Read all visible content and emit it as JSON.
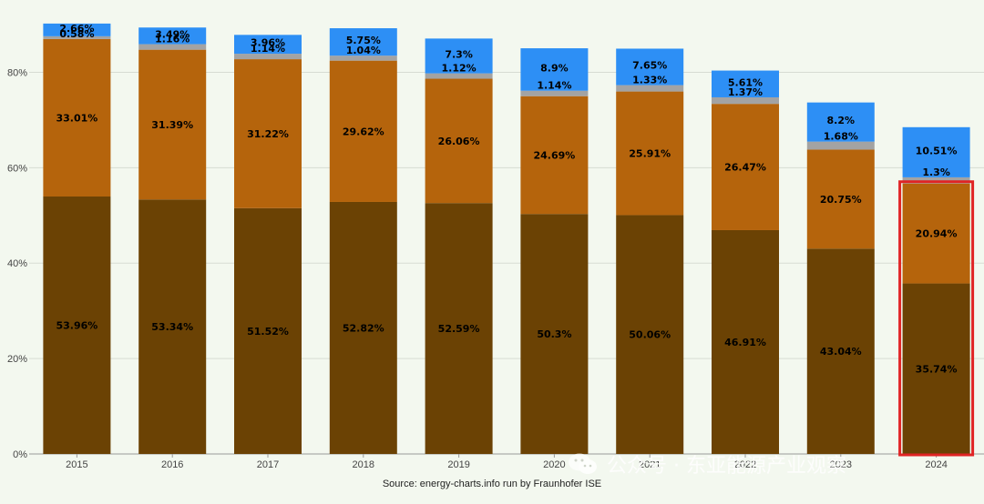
{
  "chart_data": {
    "type": "bar",
    "stacked": true,
    "categories": [
      "2015",
      "2016",
      "2017",
      "2018",
      "2019",
      "2020",
      "2021",
      "2022",
      "2023",
      "2024"
    ],
    "ylim": [
      0,
      90
    ],
    "yticks": [
      0,
      20,
      40,
      60,
      80
    ],
    "ytick_labels": [
      "0%",
      "20%",
      "40%",
      "60%",
      "80%"
    ],
    "grid": true,
    "series": [
      {
        "color": "#6b4204",
        "values": [
          53.96,
          53.34,
          51.52,
          52.82,
          52.59,
          50.3,
          50.06,
          46.91,
          43.04,
          35.74
        ],
        "labels": [
          "53.96%",
          "53.34%",
          "51.52%",
          "52.82%",
          "52.59%",
          "50.3%",
          "50.06%",
          "46.91%",
          "43.04%",
          "35.74%"
        ]
      },
      {
        "color": "#b5640c",
        "values": [
          33.01,
          31.39,
          31.22,
          29.62,
          26.06,
          24.69,
          25.91,
          26.47,
          20.75,
          20.94
        ],
        "labels": [
          "33.01%",
          "31.39%",
          "31.22%",
          "29.62%",
          "26.06%",
          "24.69%",
          "25.91%",
          "26.47%",
          "20.75%",
          "20.94%"
        ]
      },
      {
        "color": "#a3a3a3",
        "values": [
          0.58,
          1.16,
          1.14,
          1.04,
          1.12,
          1.14,
          1.33,
          1.37,
          1.68,
          1.3
        ],
        "labels": [
          "0.58%",
          "1.16%",
          "1.14%",
          "1.04%",
          "1.12%",
          "1.14%",
          "1.33%",
          "1.37%",
          "1.68%",
          "1.3%"
        ]
      },
      {
        "color": "#2d8ff5",
        "values": [
          2.66,
          3.49,
          3.96,
          5.75,
          7.3,
          8.9,
          7.65,
          5.61,
          8.2,
          10.51
        ],
        "labels": [
          "2.66%",
          "3.49%",
          "3.96%",
          "5.75%",
          "7.3%",
          "8.9%",
          "7.65%",
          "5.61%",
          "8.2%",
          "10.51%"
        ]
      }
    ],
    "highlight": {
      "category": "2024",
      "series": [
        0,
        1
      ],
      "color": "#e02424"
    }
  },
  "source": "Source: energy-charts.info run by Fraunhofer ISE",
  "watermark": "公众号 · 东亚能源产业观察"
}
